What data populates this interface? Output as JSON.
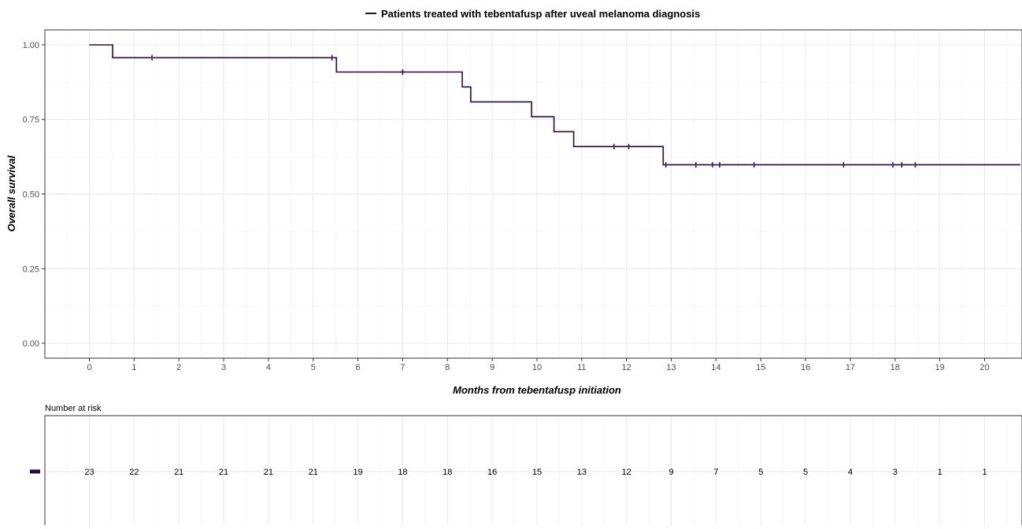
{
  "legend": {
    "series_label": "Patients treated with tebentafusp after uveal melanoma diagnosis",
    "line_color": "#2b0a3d"
  },
  "chart_data": {
    "type": "line",
    "title": "",
    "xlabel": "Months from tebentafusp initiation",
    "ylabel": "Overall survival",
    "xlim": [
      -1,
      20.8
    ],
    "ylim": [
      -0.05,
      1.05
    ],
    "x_ticks": [
      "0",
      "1",
      "2",
      "3",
      "4",
      "5",
      "6",
      "7",
      "8",
      "9",
      "10",
      "11",
      "12",
      "13",
      "14",
      "15",
      "16",
      "17",
      "18",
      "19",
      "20"
    ],
    "y_ticks": [
      "0.00",
      "0.25",
      "0.50",
      "0.75",
      "1.00"
    ],
    "grid": true,
    "legend_position": "top",
    "series": [
      {
        "name": "Patients treated with tebentafusp after uveal melanoma diagnosis",
        "color": "#2b0a3d",
        "step": [
          [
            0,
            1.0
          ],
          [
            0.52,
            0.957
          ],
          [
            5.52,
            0.909
          ],
          [
            8.33,
            0.859
          ],
          [
            8.52,
            0.809
          ],
          [
            9.88,
            0.759
          ],
          [
            10.38,
            0.709
          ],
          [
            10.82,
            0.659
          ],
          [
            12.82,
            0.598
          ],
          [
            20.8,
            0.598
          ]
        ],
        "censored": [
          [
            1.4,
            0.957
          ],
          [
            5.42,
            0.957
          ],
          [
            7.0,
            0.909
          ],
          [
            11.72,
            0.659
          ],
          [
            12.05,
            0.659
          ],
          [
            12.88,
            0.598
          ],
          [
            13.55,
            0.598
          ],
          [
            13.92,
            0.598
          ],
          [
            14.08,
            0.598
          ],
          [
            14.85,
            0.598
          ],
          [
            16.85,
            0.598
          ],
          [
            17.95,
            0.598
          ],
          [
            18.15,
            0.598
          ],
          [
            18.45,
            0.598
          ]
        ]
      }
    ]
  },
  "risk_table": {
    "title": "Number at risk",
    "strata_color": "#2b0a3d",
    "times": [
      "0",
      "1",
      "2",
      "3",
      "4",
      "5",
      "6",
      "7",
      "8",
      "9",
      "10",
      "11",
      "12",
      "13",
      "14",
      "15",
      "16",
      "17",
      "18",
      "19",
      "20"
    ],
    "counts": [
      "23",
      "22",
      "21",
      "21",
      "21",
      "21",
      "19",
      "18",
      "18",
      "16",
      "15",
      "13",
      "12",
      "9",
      "7",
      "5",
      "5",
      "4",
      "3",
      "1",
      "1"
    ]
  }
}
